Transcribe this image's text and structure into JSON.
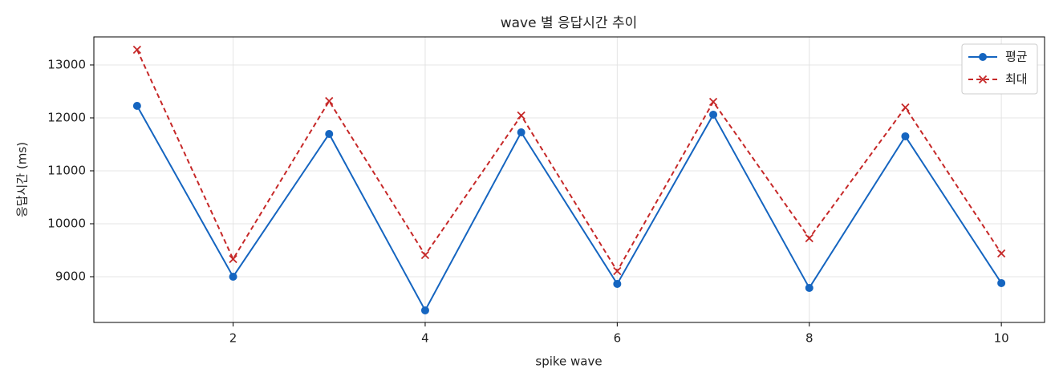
{
  "chart_data": {
    "type": "line",
    "title": "wave 별 응답시간 추이",
    "x_label": "spike wave",
    "y_label": "응답시간 (ms)",
    "x": [
      1,
      2,
      3,
      4,
      5,
      6,
      7,
      8,
      9,
      10
    ],
    "series": [
      {
        "name": "평균",
        "color": "#1565c0",
        "marker": "circle",
        "dash": false,
        "values": [
          12227,
          9000,
          11697,
          8364,
          11727,
          8864,
          12061,
          8788,
          11652,
          8879
        ]
      },
      {
        "name": "최대",
        "color": "#c62828",
        "marker": "x",
        "dash": true,
        "values": [
          13288,
          9333,
          12318,
          9409,
          12045,
          9106,
          12303,
          9727,
          12197,
          9439
        ]
      }
    ],
    "xlim": [
      0.55,
      10.45
    ],
    "xticks": [
      2,
      4,
      6,
      8,
      10
    ],
    "ylim": [
      8136,
      13530
    ],
    "yticks": [
      9000,
      10000,
      11000,
      12000,
      13000
    ],
    "grid": true,
    "legend": "upper right"
  }
}
